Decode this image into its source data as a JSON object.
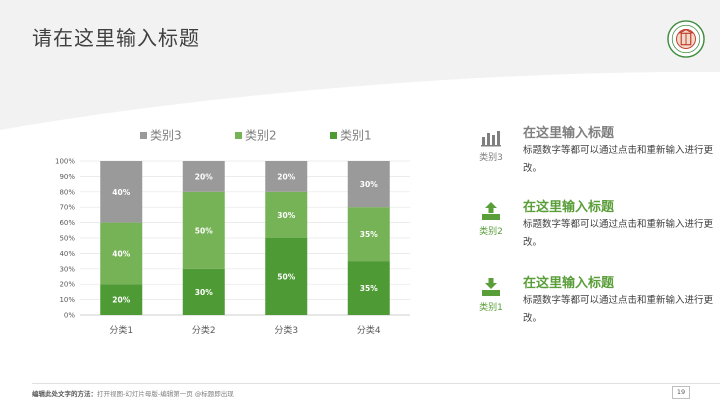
{
  "header": {
    "title": "请在这里输入标题"
  },
  "colors": {
    "series1": "#4e9a35",
    "series2": "#76b256",
    "series3": "#9a9a9a",
    "accent": "#5a9e3a"
  },
  "chart_data": {
    "type": "bar",
    "stacked": true,
    "categories": [
      "分类1",
      "分类2",
      "分类3",
      "分类4"
    ],
    "series": [
      {
        "name": "类别1",
        "values": [
          20,
          30,
          50,
          35
        ],
        "labels": [
          "20%",
          "30%",
          "50%",
          "35%"
        ],
        "color": "#4e9a35"
      },
      {
        "name": "类别2",
        "values": [
          40,
          50,
          30,
          35
        ],
        "labels": [
          "40%",
          "50%",
          "30%",
          "35%"
        ],
        "color": "#76b256"
      },
      {
        "name": "类别3",
        "values": [
          40,
          20,
          20,
          30
        ],
        "labels": [
          "40%",
          "20%",
          "20%",
          "30%"
        ],
        "color": "#9a9a9a"
      }
    ],
    "yticks": [
      "0%",
      "10%",
      "20%",
      "30%",
      "40%",
      "50%",
      "60%",
      "70%",
      "80%",
      "90%",
      "100%"
    ],
    "ylim": [
      0,
      100
    ],
    "legend_order": [
      "类别3",
      "类别2",
      "类别1"
    ],
    "legend_position": "top"
  },
  "items": [
    {
      "icon": "bar-chart-icon",
      "tag": "类别3",
      "title": "在这里输入标题",
      "desc": "标题数字等都可以通过点击和重新输入进行更改。",
      "color": "#7f7f7f"
    },
    {
      "icon": "upload-icon",
      "tag": "类别2",
      "title": "在这里输入标题",
      "desc": "标题数字等都可以通过点击和重新输入进行更改。",
      "color": "#5a9e3a"
    },
    {
      "icon": "download-icon",
      "tag": "类别1",
      "title": "在这里输入标题",
      "desc": "标题数字等都可以通过点击和重新输入进行更改。",
      "color": "#5a9e3a"
    }
  ],
  "footer": {
    "note_bold": "编辑此处文字的方法：",
    "note": "打开视图-幻灯片母版-编辑第一页 @标题即出现",
    "page": "19"
  }
}
